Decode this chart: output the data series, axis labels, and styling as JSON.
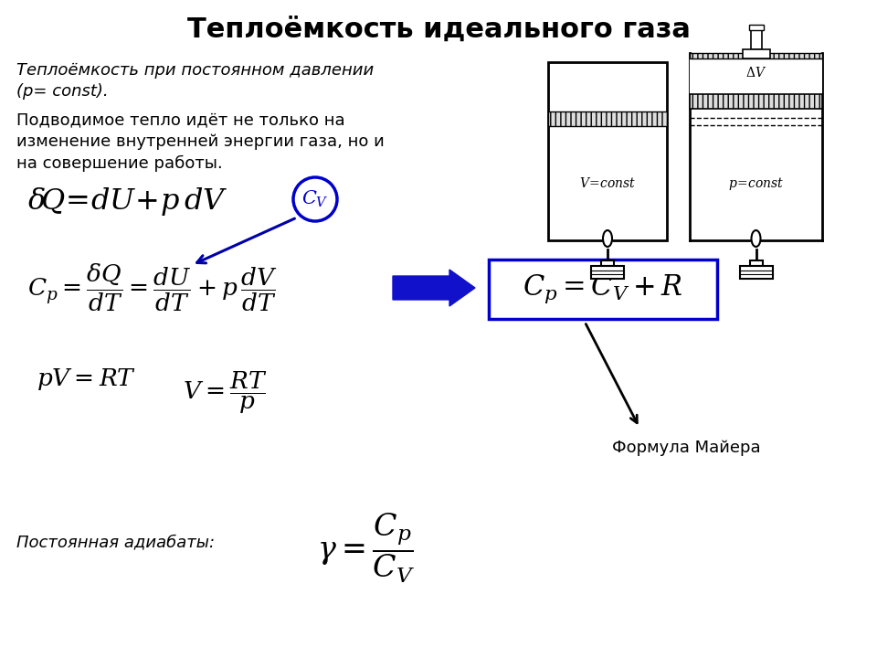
{
  "title": "Теплоёмкость идеального газа",
  "title_fontsize": 22,
  "title_fontweight": "bold",
  "bg_color": "#ffffff",
  "text_color": "#000000",
  "italic_line1": "Теплоёмкость при постоянном давлении",
  "italic_line2": "(p= const).",
  "body_text1": "Подводимое тепло идёт не только на",
  "body_text2": "изменение внутренней энергии газа, но и",
  "body_text3": "на совершение работы.",
  "formula_mayera_label": "Формула Майера",
  "postoyan_label": "Постоянная адиабаты:"
}
